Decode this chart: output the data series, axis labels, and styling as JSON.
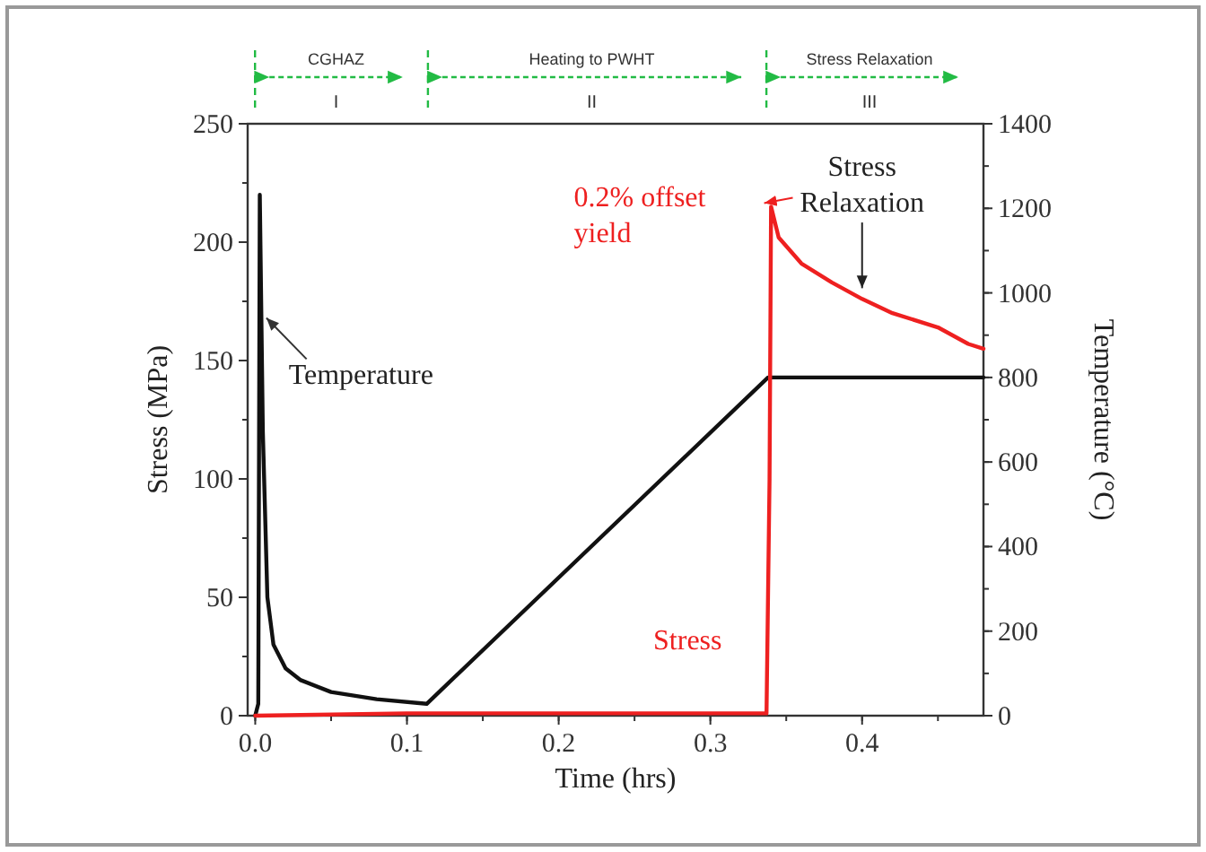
{
  "chart_data": {
    "type": "line",
    "xlabel": "Time (hrs)",
    "ylabel": "Stress (MPa)",
    "y2label": "Temperature (°C)",
    "xlim": [
      -0.005,
      0.48
    ],
    "xticks": [
      {
        "value": 0,
        "label": "0.0"
      },
      0.1,
      0.2,
      0.3,
      0.4
    ],
    "ylim": [
      0,
      250
    ],
    "yticks": [
      0,
      50,
      100,
      150,
      200,
      250
    ],
    "y2lim": [
      0,
      1400
    ],
    "y2ticks": [
      0,
      200,
      400,
      600,
      800,
      1000,
      1200,
      1400
    ],
    "series": [
      {
        "name": "Temperature",
        "color": "#111111",
        "axis": "y2",
        "x": [
          0,
          0.002,
          0.003,
          0.005,
          0.008,
          0.012,
          0.02,
          0.03,
          0.05,
          0.08,
          0.113,
          0.338,
          0.48
        ],
        "values": [
          0,
          28,
          1232,
          672,
          280,
          168,
          112,
          84,
          56,
          39,
          28,
          800,
          800
        ]
      },
      {
        "name": "Stress",
        "color": "#ee2020",
        "x": [
          0,
          0.1,
          0.337,
          0.339,
          0.34,
          0.345,
          0.36,
          0.38,
          0.4,
          0.42,
          0.45,
          0.47,
          0.48
        ],
        "values": [
          0,
          1,
          1,
          100,
          215,
          202,
          191,
          183,
          176,
          170,
          164,
          157,
          155
        ]
      }
    ],
    "annotations": [
      {
        "text": "0.2% offset yield",
        "x": 0.339,
        "y": 215
      },
      {
        "text": "Stress Relaxation",
        "x": 0.4,
        "y": 176
      },
      "CGHAZ",
      "I",
      "Heating to PWHT",
      "II",
      "Stress Relaxation",
      "III"
    ]
  }
}
